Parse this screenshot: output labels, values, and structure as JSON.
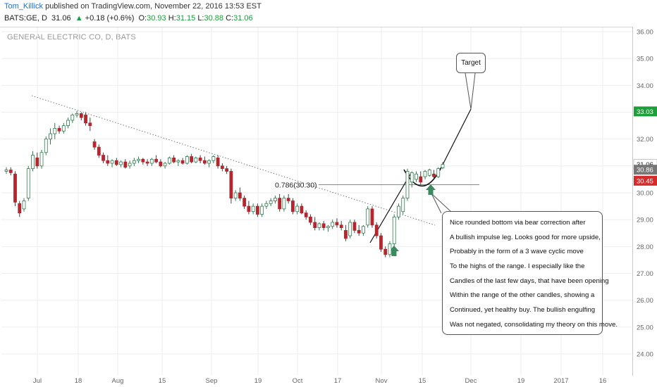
{
  "header": {
    "author": "Tom_Killick",
    "published_text": " published on TradingView.com, November 22, 2016 13:53 EST",
    "symbol": "BATS:GE, D",
    "last": "31.06",
    "change_arrow": "▲",
    "change": "+0.18 (+0.6%)",
    "o_label": "O:",
    "o_value": "30.93",
    "h_label": "H:",
    "h_value": "31.15",
    "l_label": "L:",
    "l_value": "30.88",
    "c_label": "C:",
    "c_value": "31.06"
  },
  "chart_title": "GENERAL ELECTRIC CO, D, BATS",
  "annotations": {
    "fib_label": "0.786(30.30)",
    "target_label": "Target",
    "note_lines": [
      "Nice rounded bottom via bear correction after",
      "A bullish impulse leg. Looks good for more upside,",
      "Probably in the form of a 3 wave cyclic move",
      "To the highs of the range. I especially like the",
      "Candles of the last few days, that have been opening",
      "Within the range of the other candles, showing a",
      "Continued, yet healthy buy. The bullish engulfing",
      "Was not negated, consolidating my theory on this move."
    ]
  },
  "price_badges": [
    {
      "value": "33.03",
      "color": "#1e9e3a"
    },
    {
      "value": "31.06",
      "color": "#ffffff"
    },
    {
      "value": "30.86",
      "color": "#777777"
    },
    {
      "value": "30.45",
      "color": "#d42b2b"
    }
  ],
  "colors": {
    "up_candle_body": "#ffffff",
    "up_candle_border": "#2f7d4f",
    "down_candle_body": "#b5272e",
    "arrow": "#3d8a61",
    "grid": "#eeeeee"
  },
  "chart_data": {
    "type": "candlestick",
    "y_ticks": [
      "36.00",
      "35.00",
      "34.00",
      "33.00",
      "32.00",
      "31.00",
      "30.00",
      "29.00",
      "28.00",
      "27.00",
      "26.00",
      "25.00",
      "24.00"
    ],
    "x_ticks": [
      "Jul",
      "18",
      "Aug",
      "15",
      "Sep",
      "19",
      "Oct",
      "17",
      "Nov",
      "15",
      "Dec",
      "19",
      "2017",
      "16"
    ],
    "ylim": [
      23.4,
      36.3
    ],
    "grid": true,
    "candles": [
      [
        30.8,
        30.95,
        30.7,
        30.85
      ],
      [
        30.85,
        30.95,
        30.65,
        30.75
      ],
      [
        30.7,
        30.8,
        29.5,
        29.65
      ],
      [
        29.6,
        29.7,
        29.1,
        29.25
      ],
      [
        29.4,
        29.8,
        29.3,
        29.7
      ],
      [
        29.8,
        31.0,
        29.7,
        30.9
      ],
      [
        30.9,
        31.55,
        30.8,
        31.4
      ],
      [
        31.3,
        31.5,
        30.9,
        31.0
      ],
      [
        31.0,
        31.6,
        30.9,
        31.5
      ],
      [
        31.5,
        32.1,
        31.4,
        32.0
      ],
      [
        32.0,
        32.4,
        31.8,
        32.2
      ],
      [
        32.2,
        32.6,
        32.0,
        32.4
      ],
      [
        32.4,
        32.5,
        32.2,
        32.3
      ],
      [
        32.3,
        32.6,
        32.2,
        32.5
      ],
      [
        32.5,
        32.8,
        32.4,
        32.7
      ],
      [
        32.7,
        32.95,
        32.6,
        32.9
      ],
      [
        32.9,
        33.05,
        32.8,
        32.95
      ],
      [
        32.95,
        33.0,
        32.7,
        32.8
      ],
      [
        32.9,
        33.0,
        32.5,
        32.6
      ],
      [
        32.6,
        32.8,
        32.3,
        32.5
      ],
      [
        31.9,
        32.0,
        31.6,
        31.7
      ],
      [
        31.7,
        31.8,
        31.3,
        31.4
      ],
      [
        31.4,
        31.5,
        31.1,
        31.2
      ],
      [
        31.2,
        31.4,
        31.0,
        31.1
      ],
      [
        31.1,
        31.25,
        30.95,
        31.2
      ],
      [
        31.2,
        31.3,
        31.0,
        31.05
      ],
      [
        31.05,
        31.2,
        30.95,
        31.15
      ],
      [
        31.15,
        31.25,
        30.9,
        30.95
      ],
      [
        31.0,
        31.2,
        30.9,
        31.1
      ],
      [
        31.1,
        31.3,
        31.0,
        31.2
      ],
      [
        31.2,
        31.35,
        31.1,
        31.25
      ],
      [
        31.25,
        31.3,
        31.05,
        31.15
      ],
      [
        31.15,
        31.25,
        31.0,
        31.1
      ],
      [
        31.1,
        31.3,
        31.0,
        31.25
      ],
      [
        31.25,
        31.4,
        31.1,
        31.15
      ],
      [
        31.15,
        31.25,
        30.95,
        31.0
      ],
      [
        31.0,
        31.15,
        30.9,
        31.1
      ],
      [
        31.1,
        31.35,
        31.05,
        31.3
      ],
      [
        31.3,
        31.4,
        31.1,
        31.15
      ],
      [
        31.15,
        31.25,
        31.0,
        31.2
      ],
      [
        31.2,
        31.3,
        31.05,
        31.1
      ],
      [
        31.1,
        31.4,
        31.05,
        31.35
      ],
      [
        31.35,
        31.45,
        31.1,
        31.15
      ],
      [
        31.15,
        31.35,
        31.1,
        31.3
      ],
      [
        31.3,
        31.4,
        31.1,
        31.2
      ],
      [
        31.2,
        31.35,
        31.05,
        31.1
      ],
      [
        31.1,
        31.25,
        30.95,
        31.2
      ],
      [
        31.2,
        31.4,
        31.1,
        31.35
      ],
      [
        31.3,
        31.4,
        30.9,
        31.0
      ],
      [
        31.0,
        31.1,
        30.8,
        30.9
      ],
      [
        30.9,
        31.0,
        30.7,
        30.8
      ],
      [
        30.8,
        30.9,
        29.6,
        29.8
      ],
      [
        29.8,
        30.1,
        29.7,
        30.0
      ],
      [
        30.0,
        30.2,
        29.7,
        29.8
      ],
      [
        29.8,
        29.9,
        29.4,
        29.5
      ],
      [
        29.5,
        29.7,
        29.2,
        29.3
      ],
      [
        29.3,
        29.6,
        29.2,
        29.5
      ],
      [
        29.5,
        29.6,
        29.1,
        29.2
      ],
      [
        29.2,
        29.6,
        29.1,
        29.5
      ],
      [
        29.5,
        29.7,
        29.4,
        29.6
      ],
      [
        29.6,
        29.8,
        29.5,
        29.7
      ],
      [
        29.7,
        29.9,
        29.6,
        29.8
      ],
      [
        29.8,
        29.95,
        29.3,
        29.4
      ],
      [
        29.4,
        29.9,
        29.3,
        29.8
      ],
      [
        29.8,
        29.95,
        29.6,
        29.7
      ],
      [
        29.7,
        29.8,
        29.2,
        29.3
      ],
      [
        29.3,
        29.6,
        29.2,
        29.5
      ],
      [
        29.5,
        29.6,
        29.2,
        29.25
      ],
      [
        29.25,
        29.35,
        29.0,
        29.1
      ],
      [
        29.1,
        29.2,
        28.8,
        28.9
      ],
      [
        28.9,
        29.1,
        28.6,
        28.7
      ],
      [
        28.7,
        28.9,
        28.6,
        28.85
      ],
      [
        28.85,
        28.95,
        28.6,
        28.7
      ],
      [
        28.7,
        28.8,
        28.55,
        28.75
      ],
      [
        28.75,
        29.0,
        28.65,
        28.9
      ],
      [
        28.9,
        29.05,
        28.7,
        28.8
      ],
      [
        28.8,
        28.95,
        28.6,
        28.7
      ],
      [
        28.6,
        28.8,
        28.2,
        28.3
      ],
      [
        28.4,
        29.0,
        28.3,
        28.9
      ],
      [
        28.9,
        29.0,
        28.5,
        28.6
      ],
      [
        28.6,
        28.8,
        28.4,
        28.5
      ],
      [
        28.5,
        28.8,
        28.4,
        28.75
      ],
      [
        28.8,
        29.5,
        28.7,
        29.4
      ],
      [
        29.4,
        29.5,
        28.7,
        28.8
      ],
      [
        28.8,
        28.9,
        28.3,
        28.4
      ],
      [
        28.4,
        28.5,
        27.8,
        27.9
      ],
      [
        27.9,
        28.0,
        27.6,
        27.7
      ],
      [
        27.7,
        28.2,
        27.6,
        28.1
      ],
      [
        28.1,
        29.2,
        28.0,
        29.1
      ],
      [
        29.1,
        29.6,
        29.0,
        29.5
      ],
      [
        29.3,
        29.9,
        29.2,
        29.8
      ],
      [
        29.8,
        30.9,
        29.7,
        30.8
      ],
      [
        30.4,
        30.8,
        30.2,
        30.75
      ],
      [
        30.5,
        30.8,
        30.4,
        30.7
      ],
      [
        30.6,
        30.8,
        30.3,
        30.4
      ],
      [
        30.6,
        30.85,
        30.5,
        30.8
      ],
      [
        30.65,
        30.9,
        30.6,
        30.85
      ],
      [
        30.7,
        30.85,
        30.55,
        30.6
      ],
      [
        30.6,
        30.95,
        30.55,
        30.9
      ],
      [
        30.93,
        31.15,
        30.88,
        31.06
      ]
    ],
    "fib_level": 30.3,
    "last_price": 31.06
  }
}
